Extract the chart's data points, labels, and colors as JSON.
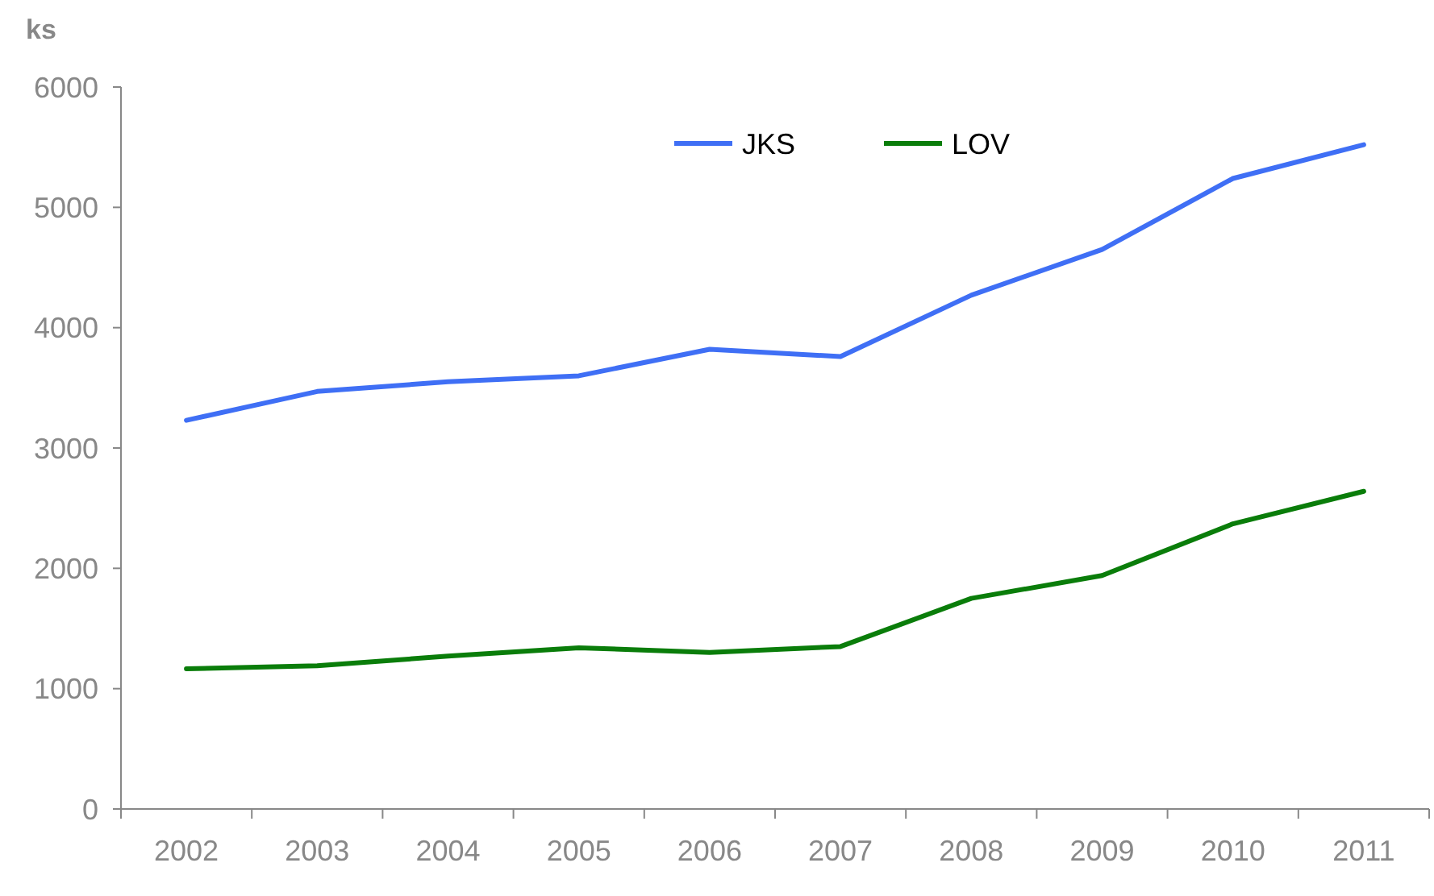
{
  "chart_data": {
    "type": "line",
    "ylabel": "ks",
    "categories": [
      "2002",
      "2003",
      "2004",
      "2005",
      "2006",
      "2007",
      "2008",
      "2009",
      "2010",
      "2011"
    ],
    "series": [
      {
        "name": "JKS",
        "color": "#3f6ff5",
        "values": [
          3230,
          3470,
          3550,
          3600,
          3820,
          3760,
          4270,
          4650,
          5240,
          5520
        ]
      },
      {
        "name": "LOV",
        "color": "#0a7d0a",
        "values": [
          1165,
          1190,
          1270,
          1340,
          1300,
          1350,
          1750,
          1940,
          2370,
          2640
        ]
      }
    ],
    "ylim": [
      0,
      6000
    ],
    "yticks": [
      0,
      1000,
      2000,
      3000,
      4000,
      5000,
      6000
    ],
    "grid": false,
    "legend": "top",
    "marker": "none",
    "line_style": "solid"
  }
}
